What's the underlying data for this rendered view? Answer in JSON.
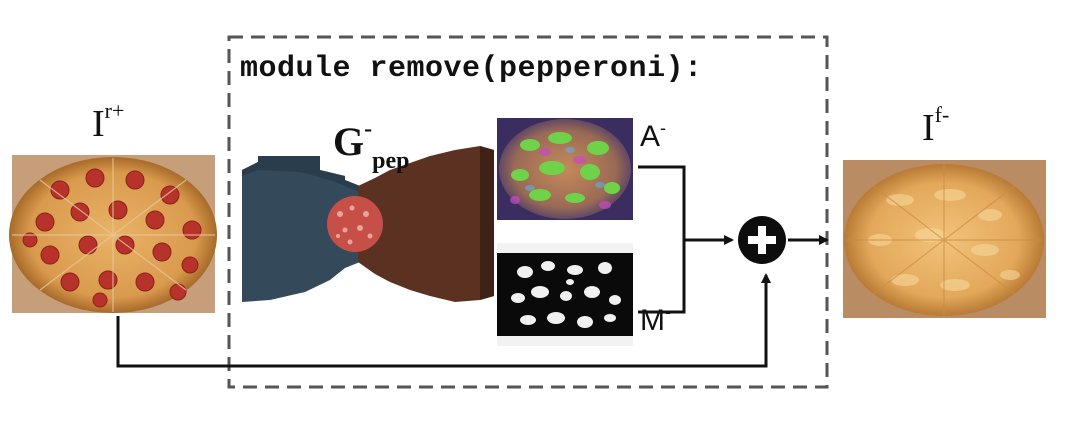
{
  "module_title": "module remove(pepperoni):",
  "labels": {
    "input": {
      "base": "I",
      "sup": "r+"
    },
    "output": {
      "base": "I",
      "sup": "f-"
    },
    "generator": {
      "base": "G",
      "sup": "-",
      "sub": "pep"
    },
    "attention": {
      "base": "A",
      "sup": "-"
    },
    "mask": {
      "base": "M",
      "sup": "-"
    }
  },
  "combine_symbol": "+",
  "icons": {
    "input_image": "pepperoni-pizza-image",
    "output_image": "cheese-pizza-image",
    "generator_shape": "encoder-decoder-icon",
    "pepperoni": "pepperoni-icon",
    "attention_map": "attention-image",
    "mask_map": "mask-image",
    "combine": "plus-circle-icon"
  },
  "colors": {
    "encoder": "#34495a",
    "decoder": "#5b3222",
    "pepperoni": "#c65048",
    "dashed_border": "#555555"
  }
}
